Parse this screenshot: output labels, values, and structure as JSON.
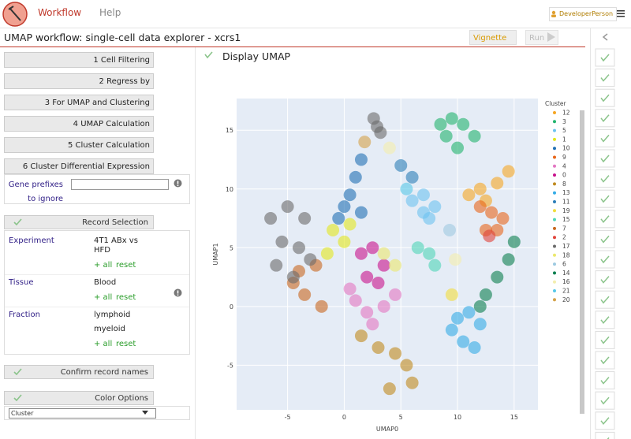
{
  "nav": {
    "workflow": "Workflow",
    "help": "Help",
    "user": "DeveloperPerson"
  },
  "header": {
    "title": "UMAP workflow: single-cell data explorer - xcrs1",
    "vignette": "Vignette",
    "run": "Run"
  },
  "steps": [
    "1 Cell Filtering",
    "2 Regress by",
    "3 For UMAP and Clustering",
    "4 UMAP Calculation",
    "5 Cluster Calculation",
    "6 Cluster Differential Expression"
  ],
  "gene_prefixes": {
    "label": "Gene prefixes to ignore"
  },
  "record_selection": {
    "title": "Record Selection",
    "all": "+ all",
    "reset": "reset",
    "fields": [
      {
        "label": "Experiment",
        "values": [
          "4T1 ABx vs HFD"
        ]
      },
      {
        "label": "Tissue",
        "values": [
          "Blood"
        ]
      },
      {
        "label": "Fraction",
        "values": [
          "lymphoid",
          "myeloid"
        ]
      }
    ]
  },
  "confirm": {
    "title": "Confirm record names"
  },
  "color_options": {
    "title": "Color Options",
    "selected": "Cluster"
  },
  "chart_data": {
    "type": "scatter",
    "title": "Display UMAP",
    "x_label": "UMAP0",
    "y_label": "UMAP1",
    "legend_title": "Cluster",
    "xlim": [
      -9.5,
      17.1
    ],
    "ylim": [
      -8.8,
      17.7
    ],
    "xticks": [
      -5,
      0,
      5,
      10,
      15
    ],
    "yticks": [
      -5,
      0,
      5,
      10,
      15
    ],
    "grid": true,
    "series": [
      {
        "name": "12",
        "color": "#f5a623",
        "x": [
          11,
          12,
          13.5,
          14.5,
          12.5
        ],
        "y": [
          9.5,
          10,
          10.5,
          11.5,
          9
        ]
      },
      {
        "name": "3",
        "color": "#22b46e",
        "x": [
          8.5,
          9.5,
          10.5,
          11.5,
          10,
          9
        ],
        "y": [
          15.5,
          16,
          15.5,
          14.5,
          13.5,
          14.5
        ]
      },
      {
        "name": "5",
        "color": "#6cc3f0",
        "x": [
          6,
          7,
          8,
          7.5,
          7
        ],
        "y": [
          9,
          9.5,
          8.5,
          7.5,
          8
        ]
      },
      {
        "name": "1",
        "color": "#e3e81e",
        "x": [
          -1,
          0,
          -1.5,
          0.5
        ],
        "y": [
          6.5,
          5.5,
          4.5,
          7
        ]
      },
      {
        "name": "10",
        "color": "#1f6fb4",
        "x": [
          1.5,
          1,
          0.5,
          0,
          -0.5,
          1.5
        ],
        "y": [
          12.5,
          11,
          9.5,
          8.5,
          7.5,
          8
        ]
      },
      {
        "name": "9",
        "color": "#e8661a",
        "x": [
          12,
          13,
          14,
          13.5,
          12.5
        ],
        "y": [
          8.5,
          8,
          7.5,
          6.5,
          6.5
        ]
      },
      {
        "name": "4",
        "color": "#e377c2",
        "x": [
          1,
          2,
          3.5,
          4.5,
          2.5,
          0.5
        ],
        "y": [
          0.5,
          -0.5,
          0,
          1,
          -1.5,
          1.5
        ]
      },
      {
        "name": "0",
        "color": "#c8128c",
        "x": [
          1.5,
          2.5,
          3.5,
          2,
          3
        ],
        "y": [
          4.5,
          5,
          3.5,
          2.5,
          2
        ]
      },
      {
        "name": "8",
        "color": "#bf8a1e",
        "x": [
          1.5,
          3,
          4.5,
          5.5,
          6,
          4
        ],
        "y": [
          -2.5,
          -3.5,
          -4,
          -5,
          -6.5,
          -7
        ]
      },
      {
        "name": "13",
        "color": "#34ace6",
        "x": [
          10,
          11,
          12,
          10.5,
          11.5,
          9.5
        ],
        "y": [
          -1,
          -0.5,
          -1.5,
          -3,
          -3.5,
          -2
        ]
      },
      {
        "name": "11",
        "color": "#2c7fb8",
        "x": [
          5,
          6
        ],
        "y": [
          12,
          11
        ]
      },
      {
        "name": "19",
        "color": "#f2dd3c",
        "x": [
          9.5
        ],
        "y": [
          1
        ]
      },
      {
        "name": "15",
        "color": "#4fd6b8",
        "x": [
          6.5,
          7.5,
          8
        ],
        "y": [
          5,
          4.5,
          3.5
        ]
      },
      {
        "name": "7",
        "color": "#c8671f",
        "x": [
          -4,
          -2.5,
          -3.5,
          -2,
          -4.5
        ],
        "y": [
          3,
          3.5,
          1,
          0,
          2
        ]
      },
      {
        "name": "2",
        "color": "#e0433a",
        "x": [
          12.8
        ],
        "y": [
          6
        ]
      },
      {
        "name": "17",
        "color": "#6b6b6b",
        "x": [
          -6.5,
          -5,
          -3.5,
          -5.5,
          -4,
          -6,
          -3,
          -4.5,
          2.6,
          2.9,
          3.2
        ],
        "y": [
          7.5,
          8.5,
          7.5,
          5.5,
          5,
          3.5,
          4,
          2.5,
          16,
          15.3,
          14.8
        ]
      },
      {
        "name": "18",
        "color": "#ebe86e",
        "x": [
          3.5,
          4.5
        ],
        "y": [
          4.5,
          3.5
        ]
      },
      {
        "name": "6",
        "color": "#9ecae1",
        "x": [
          9.3
        ],
        "y": [
          6.5
        ]
      },
      {
        "name": "14",
        "color": "#0a7f4f",
        "x": [
          12.5,
          13.5,
          14.5,
          15,
          12
        ],
        "y": [
          1,
          2.5,
          4,
          5.5,
          0
        ]
      },
      {
        "name": "16",
        "color": "#f3eeae",
        "x": [
          4,
          9.8
        ],
        "y": [
          13.5,
          4
        ]
      },
      {
        "name": "21",
        "color": "#56c8e8",
        "x": [
          5.5
        ],
        "y": [
          10
        ]
      },
      {
        "name": "20",
        "color": "#d4a24a",
        "x": [
          1.8
        ],
        "y": [
          14
        ]
      }
    ]
  }
}
